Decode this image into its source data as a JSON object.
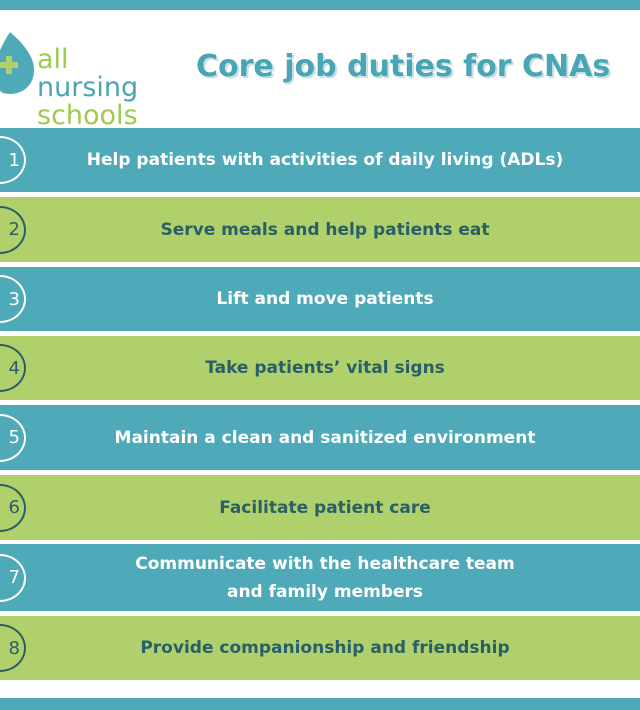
{
  "logo": {
    "line1": "all",
    "line2": "nursing",
    "line3": "schools"
  },
  "title": "Core job duties for CNAs",
  "colors": {
    "teal": "#4ea9b8",
    "green": "#afd06b",
    "dark_text": "#2a5f6a"
  },
  "duties": [
    {
      "num": "1",
      "text": "Help patients with activities of daily living (ADLs)"
    },
    {
      "num": "2",
      "text": "Serve meals and help patients eat"
    },
    {
      "num": "3",
      "text": "Lift and move patients"
    },
    {
      "num": "4",
      "text": "Take patients’ vital signs"
    },
    {
      "num": "5",
      "text": "Maintain a clean and sanitized environment"
    },
    {
      "num": "6",
      "text": "Facilitate patient care"
    },
    {
      "num": "7",
      "text": "Communicate with the healthcare team and family members"
    },
    {
      "num": "8",
      "text": "Provide companionship and friendship"
    }
  ]
}
